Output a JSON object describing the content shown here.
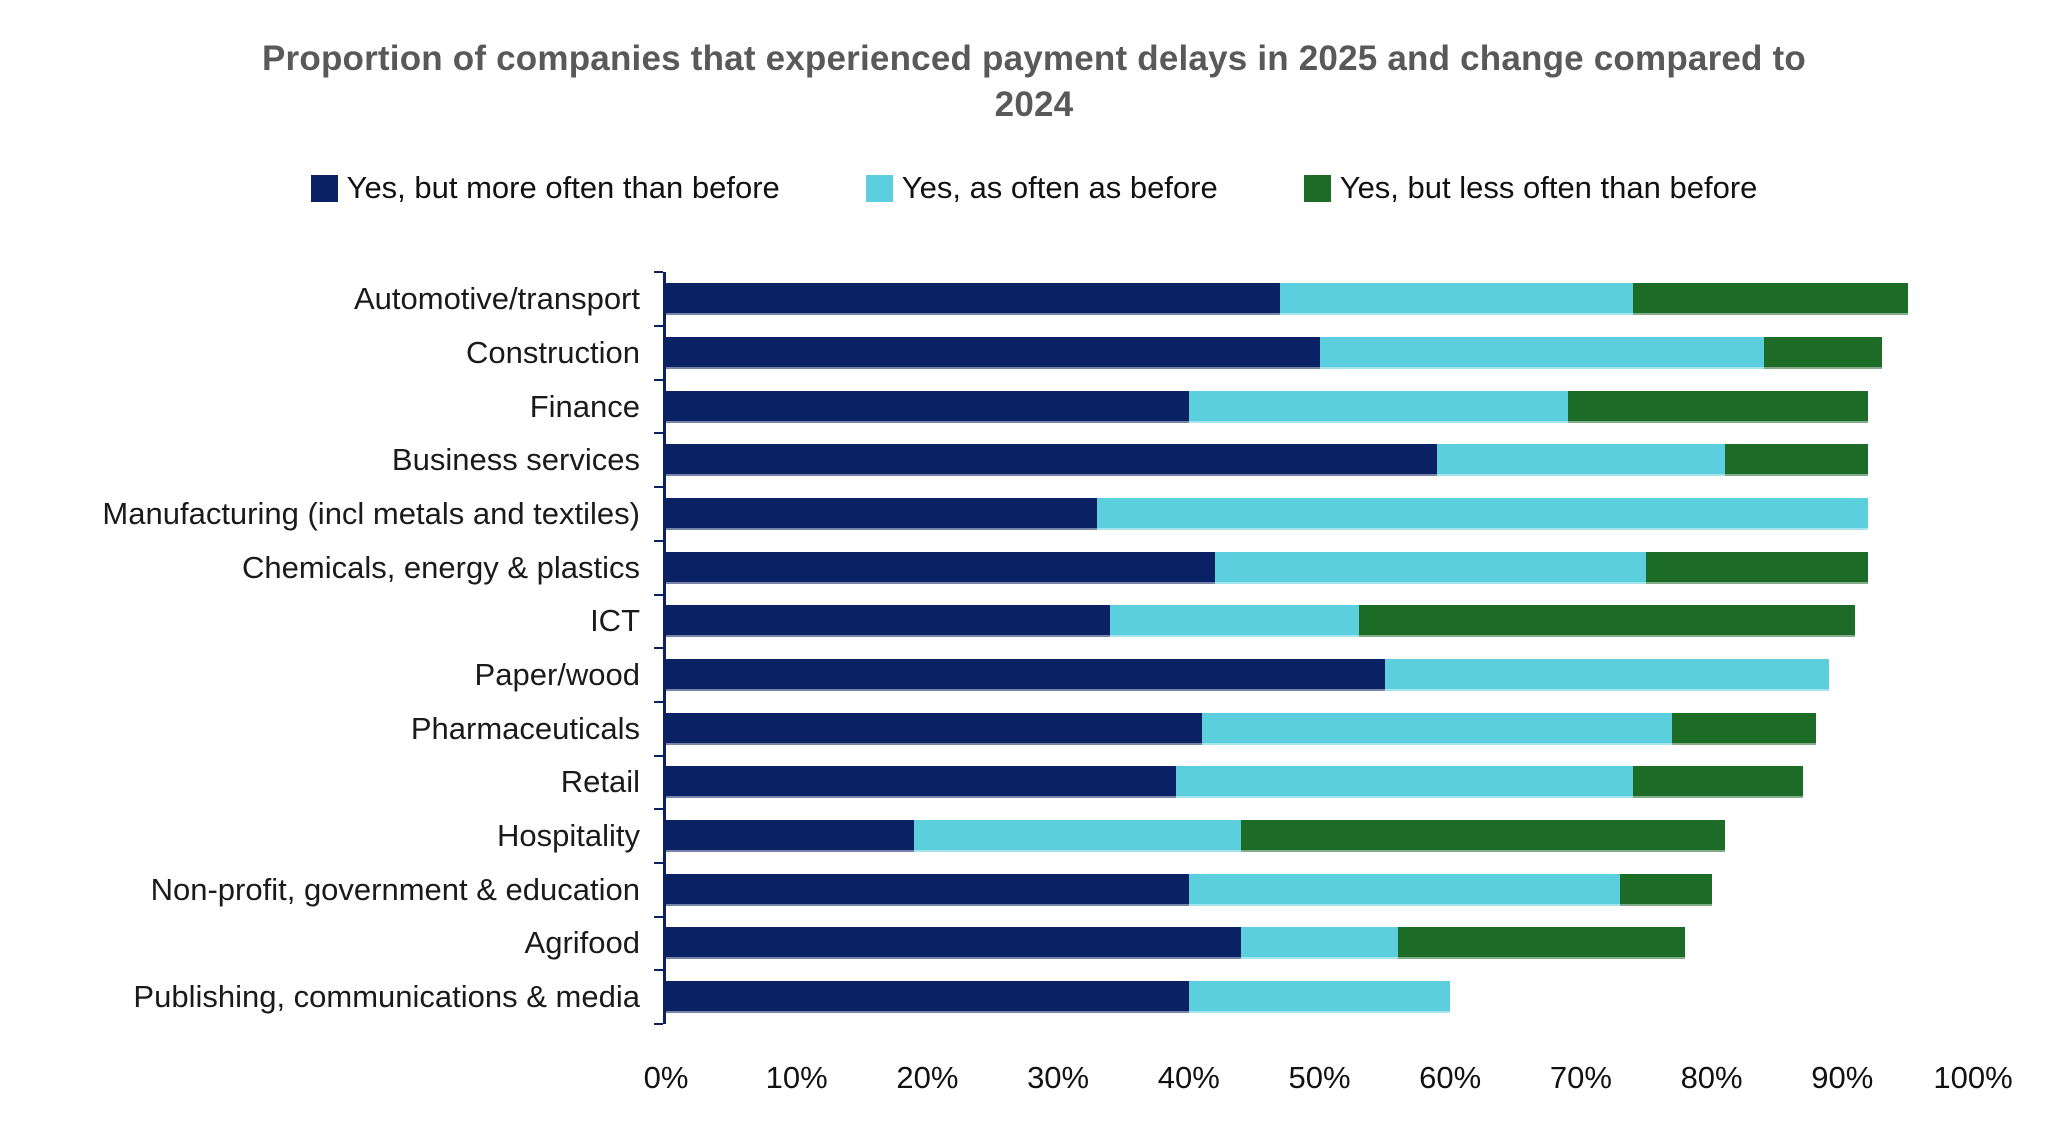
{
  "title": "Proportion of companies that experienced payment delays in 2025 and change compared to 2024",
  "style": {
    "title_color": "#595959",
    "axis_color": "#0A2163",
    "background": "#ffffff"
  },
  "chart_data": {
    "type": "bar",
    "orientation": "horizontal",
    "stacked": true,
    "title": "Proportion of companies that experienced payment delays in 2025 and change compared to 2024",
    "xlabel": "",
    "ylabel": "",
    "xlim": [
      0,
      100
    ],
    "x_ticks": [
      "0%",
      "10%",
      "20%",
      "30%",
      "40%",
      "50%",
      "60%",
      "70%",
      "80%",
      "90%",
      "100%"
    ],
    "grid": false,
    "legend_position": "top",
    "categories": [
      "Automotive/transport",
      "Construction",
      "Finance",
      "Business services",
      "Manufacturing (incl metals and textiles)",
      "Chemicals, energy & plastics",
      "ICT",
      "Paper/wood",
      "Pharmaceuticals",
      "Retail",
      "Hospitality",
      "Non-profit, government & education",
      "Agrifood",
      "Publishing, communications & media"
    ],
    "series": [
      {
        "name": "Yes, but more often than before",
        "color": "#0A2163",
        "values": [
          47,
          50,
          40,
          59,
          33,
          42,
          34,
          55,
          41,
          39,
          19,
          40,
          44,
          40
        ]
      },
      {
        "name": "Yes, as often as before",
        "color": "#5CCFDF",
        "values": [
          27,
          34,
          29,
          22,
          59,
          33,
          19,
          34,
          36,
          35,
          25,
          33,
          12,
          20
        ]
      },
      {
        "name": "Yes, but less often than before",
        "color": "#1C6B27",
        "values": [
          21,
          9,
          23,
          11,
          0,
          17,
          38,
          0,
          11,
          13,
          37,
          7,
          22,
          0
        ]
      }
    ]
  }
}
